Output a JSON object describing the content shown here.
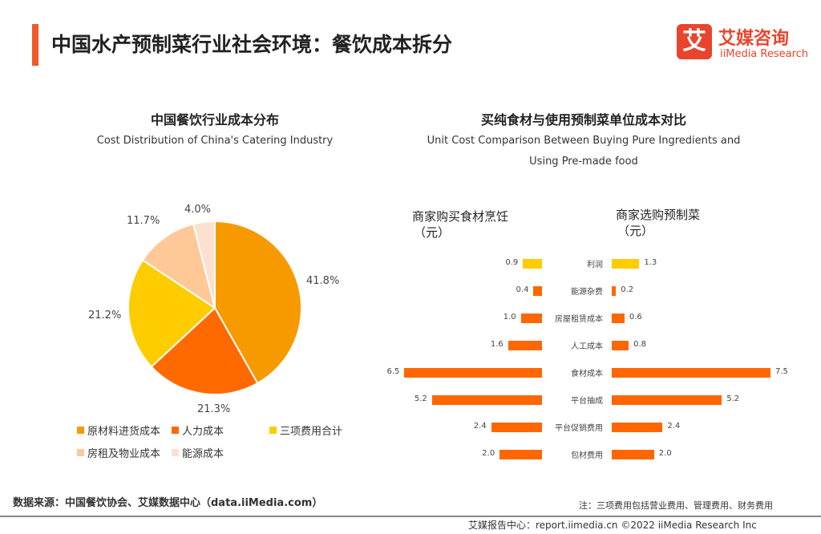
{
  "header": {
    "title": "中国水产预制菜行业社会环境：餐饮成本拆分",
    "logo_mark": "艾",
    "logo_cn": "艾媒咨询",
    "logo_en": "iiMedia Research"
  },
  "chart_data": [
    {
      "type": "pie",
      "title": "中国餐饮行业成本分布",
      "subtitle": "Cost Distribution of China's Catering Industry",
      "categories": [
        "原材料进货成本",
        "人力成本",
        "三项费用合计",
        "房租及物业成本",
        "能源成本"
      ],
      "values": [
        41.8,
        21.3,
        21.2,
        11.7,
        4.0
      ],
      "labels": [
        "41.8%",
        "21.3%",
        "21.2%",
        "11.7%",
        "4.0%"
      ],
      "colors": [
        "#f79a00",
        "#ff6a00",
        "#ffcc00",
        "#ffc896",
        "#fde0cf"
      ],
      "legend": "bottom"
    },
    {
      "type": "bar",
      "orientation": "horizontal-butterfly",
      "title": "买纯食材与使用预制菜单位成本对比",
      "subtitle": [
        "Unit Cost Comparison Between Buying Pure Ingredients and",
        "Using Pre-made food"
      ],
      "categories": [
        "利润",
        "能源杂费",
        "房屋租赁成本",
        "人工成本",
        "食材成本",
        "平台抽成",
        "平台促销费用",
        "包材费用"
      ],
      "series": [
        {
          "name": "商家购买食材烹饪",
          "unit": "（元）",
          "values": [
            0.9,
            0.4,
            1.0,
            1.6,
            6.5,
            5.2,
            2.4,
            2.0
          ],
          "labels": [
            "0.9",
            "0.4",
            "1.0",
            "1.6",
            "6.5",
            "5.2",
            "2.4",
            "2.0"
          ]
        },
        {
          "name": "商家选购预制菜",
          "unit": "（元）",
          "values": [
            1.3,
            0.2,
            0.6,
            0.8,
            7.5,
            5.2,
            2.4,
            2.0
          ],
          "labels": [
            "1.3",
            "0.2",
            "0.6",
            "0.8",
            "7.5",
            "5.2",
            "2.4",
            "2.0"
          ]
        }
      ],
      "colors": {
        "profit": "#ffcc00",
        "cost": "#ff6600"
      }
    }
  ],
  "footer": {
    "source": "数据来源：中国餐饮协会、艾媒数据中心（data.iiMedia.com）",
    "note": "注：三项费用包括营业费用、管理费用、财务费用",
    "report": "艾媒报告中心：report.iimedia.cn   ©2022  iiMedia Research  Inc"
  }
}
